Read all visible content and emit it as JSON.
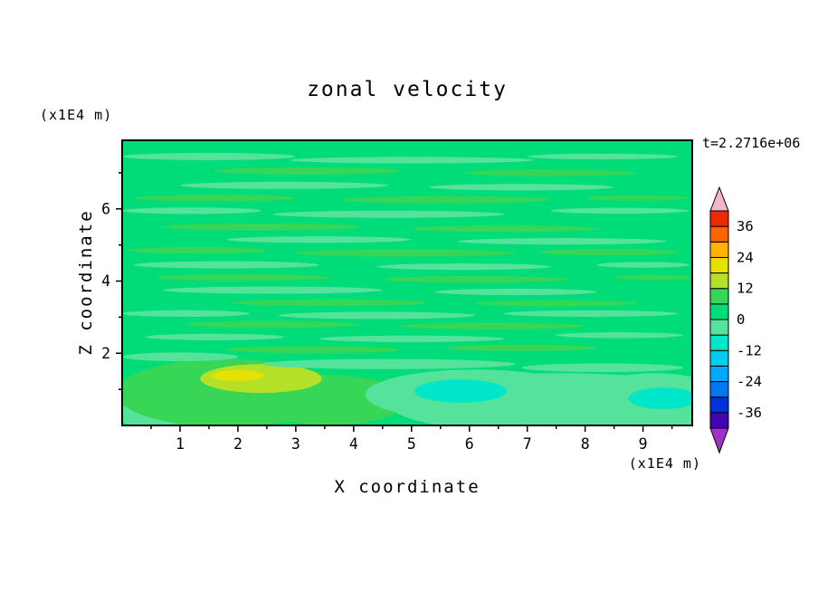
{
  "page": {
    "background": "#FFFFFF"
  },
  "chart_data": {
    "type": "heatmap",
    "title": "zonal velocity",
    "timestamp": "t=2.2716e+06",
    "xlabel": "X coordinate",
    "ylabel": "Z coordinate",
    "x_unit": "(x1E4 m)",
    "y_unit": "(x1E4 m)",
    "xlim": [
      0,
      9.85
    ],
    "ylim": [
      0,
      7.9
    ],
    "x_ticks": [
      1,
      2,
      3,
      4,
      5,
      6,
      7,
      8,
      9
    ],
    "y_ticks": [
      2,
      4,
      6
    ],
    "x_minor_step": 0.5,
    "y_minor_step": 1,
    "grid": false,
    "frame_color": "#000000",
    "colorbar": {
      "min": -42,
      "max": 42,
      "step": 6,
      "label_values": [
        36,
        24,
        12,
        0,
        -12,
        -24,
        -36
      ],
      "labels_top_to_bottom": [
        "36",
        "24",
        "12",
        "0",
        "-12",
        "-24",
        "-36"
      ],
      "colors_bottom_to_top": [
        "#4600B4",
        "#0032DC",
        "#0078F0",
        "#00A8FF",
        "#00CDEB",
        "#00E6C8",
        "#55E39B",
        "#00DC78",
        "#37D657",
        "#B4E128",
        "#E6E100",
        "#FFB400",
        "#FF6400",
        "#F02800"
      ],
      "below_min_color": "#A032C8",
      "above_max_color": "#F2B6C6"
    },
    "field": {
      "background_value": 3,
      "features": [
        {
          "x": 7.6,
          "z": 0.6,
          "rx": 3.0,
          "rz": 0.85,
          "v": -2
        },
        {
          "x": 0.7,
          "z": 0.4,
          "rx": 1.0,
          "rz": 0.45,
          "v": -2
        },
        {
          "x": 1.8,
          "z": 0.9,
          "rx": 1.9,
          "rz": 0.95,
          "v": 8
        },
        {
          "x": 3.6,
          "z": 0.7,
          "rx": 1.3,
          "rz": 0.7,
          "v": 8
        },
        {
          "x": 6.1,
          "z": 0.85,
          "rx": 1.9,
          "rz": 0.7,
          "v": -2
        },
        {
          "x": 9.2,
          "z": 0.8,
          "rx": 1.2,
          "rz": 0.65,
          "v": -2
        },
        {
          "x": 2.4,
          "z": 1.3,
          "rx": 1.05,
          "rz": 0.4,
          "v": 14
        },
        {
          "x": 2.0,
          "z": 1.38,
          "rx": 0.45,
          "rz": 0.16,
          "v": 20
        },
        {
          "x": 5.85,
          "z": 0.95,
          "rx": 0.8,
          "rz": 0.32,
          "v": -8
        },
        {
          "x": 9.35,
          "z": 0.75,
          "rx": 0.6,
          "rz": 0.3,
          "v": -8
        },
        {
          "x": 4.6,
          "z": 1.7,
          "rx": 2.2,
          "rz": 0.14,
          "v": -2
        },
        {
          "x": 8.3,
          "z": 1.6,
          "rx": 1.4,
          "rz": 0.12,
          "v": -2
        },
        {
          "x": 1.0,
          "z": 1.9,
          "rx": 1.0,
          "rz": 0.12,
          "v": -2
        },
        {
          "x": 3.3,
          "z": 2.1,
          "rx": 1.5,
          "rz": 0.1,
          "v": 8
        },
        {
          "x": 6.9,
          "z": 2.15,
          "rx": 1.3,
          "rz": 0.09,
          "v": 8
        },
        {
          "x": 1.6,
          "z": 2.45,
          "rx": 1.2,
          "rz": 0.09,
          "v": -2
        },
        {
          "x": 5.0,
          "z": 2.4,
          "rx": 1.6,
          "rz": 0.09,
          "v": -2
        },
        {
          "x": 8.6,
          "z": 2.5,
          "rx": 1.1,
          "rz": 0.08,
          "v": -2
        },
        {
          "x": 2.6,
          "z": 2.8,
          "rx": 1.5,
          "rz": 0.09,
          "v": 8
        },
        {
          "x": 6.4,
          "z": 2.75,
          "rx": 1.6,
          "rz": 0.09,
          "v": 8
        },
        {
          "x": 1.1,
          "z": 3.1,
          "rx": 1.1,
          "rz": 0.09,
          "v": -2
        },
        {
          "x": 4.4,
          "z": 3.05,
          "rx": 1.7,
          "rz": 0.1,
          "v": -2
        },
        {
          "x": 8.1,
          "z": 3.1,
          "rx": 1.5,
          "rz": 0.09,
          "v": -2
        },
        {
          "x": 3.6,
          "z": 3.4,
          "rx": 1.7,
          "rz": 0.09,
          "v": 8
        },
        {
          "x": 7.5,
          "z": 3.38,
          "rx": 1.4,
          "rz": 0.08,
          "v": 8
        },
        {
          "x": 2.6,
          "z": 3.75,
          "rx": 1.9,
          "rz": 0.1,
          "v": -2
        },
        {
          "x": 6.8,
          "z": 3.7,
          "rx": 1.4,
          "rz": 0.09,
          "v": -2
        },
        {
          "x": 2.1,
          "z": 4.1,
          "rx": 1.5,
          "rz": 0.09,
          "v": 8
        },
        {
          "x": 6.1,
          "z": 4.05,
          "rx": 1.6,
          "rz": 0.09,
          "v": 8
        },
        {
          "x": 9.2,
          "z": 4.1,
          "rx": 0.7,
          "rz": 0.07,
          "v": 8
        },
        {
          "x": 1.8,
          "z": 4.45,
          "rx": 1.6,
          "rz": 0.1,
          "v": -2
        },
        {
          "x": 5.9,
          "z": 4.4,
          "rx": 1.5,
          "rz": 0.09,
          "v": -2
        },
        {
          "x": 9.0,
          "z": 4.45,
          "rx": 0.8,
          "rz": 0.08,
          "v": -2
        },
        {
          "x": 1.3,
          "z": 4.85,
          "rx": 1.2,
          "rz": 0.09,
          "v": 8
        },
        {
          "x": 4.9,
          "z": 4.78,
          "rx": 1.9,
          "rz": 0.1,
          "v": 8
        },
        {
          "x": 8.4,
          "z": 4.8,
          "rx": 1.2,
          "rz": 0.09,
          "v": 8
        },
        {
          "x": 3.4,
          "z": 5.15,
          "rx": 1.6,
          "rz": 0.09,
          "v": -2
        },
        {
          "x": 7.6,
          "z": 5.1,
          "rx": 1.8,
          "rz": 0.09,
          "v": -2
        },
        {
          "x": 2.4,
          "z": 5.5,
          "rx": 1.7,
          "rz": 0.1,
          "v": 8
        },
        {
          "x": 6.6,
          "z": 5.45,
          "rx": 1.6,
          "rz": 0.09,
          "v": 8
        },
        {
          "x": 1.2,
          "z": 5.95,
          "rx": 1.2,
          "rz": 0.09,
          "v": -2
        },
        {
          "x": 4.6,
          "z": 5.85,
          "rx": 2.0,
          "rz": 0.1,
          "v": -2
        },
        {
          "x": 8.6,
          "z": 5.95,
          "rx": 1.2,
          "rz": 0.08,
          "v": -2
        },
        {
          "x": 1.6,
          "z": 6.3,
          "rx": 1.4,
          "rz": 0.09,
          "v": 8
        },
        {
          "x": 5.6,
          "z": 6.25,
          "rx": 1.8,
          "rz": 0.1,
          "v": 8
        },
        {
          "x": 8.9,
          "z": 6.3,
          "rx": 0.9,
          "rz": 0.07,
          "v": 8
        },
        {
          "x": 2.8,
          "z": 6.65,
          "rx": 1.8,
          "rz": 0.1,
          "v": -2
        },
        {
          "x": 6.9,
          "z": 6.6,
          "rx": 1.6,
          "rz": 0.09,
          "v": -2
        },
        {
          "x": 3.2,
          "z": 7.05,
          "rx": 1.6,
          "rz": 0.1,
          "v": 8
        },
        {
          "x": 7.4,
          "z": 7.0,
          "rx": 1.5,
          "rz": 0.09,
          "v": 8
        },
        {
          "x": 1.5,
          "z": 7.45,
          "rx": 1.5,
          "rz": 0.1,
          "v": -2
        },
        {
          "x": 5.0,
          "z": 7.35,
          "rx": 2.1,
          "rz": 0.09,
          "v": -2
        },
        {
          "x": 8.3,
          "z": 7.45,
          "rx": 1.3,
          "rz": 0.08,
          "v": -2
        }
      ]
    }
  }
}
